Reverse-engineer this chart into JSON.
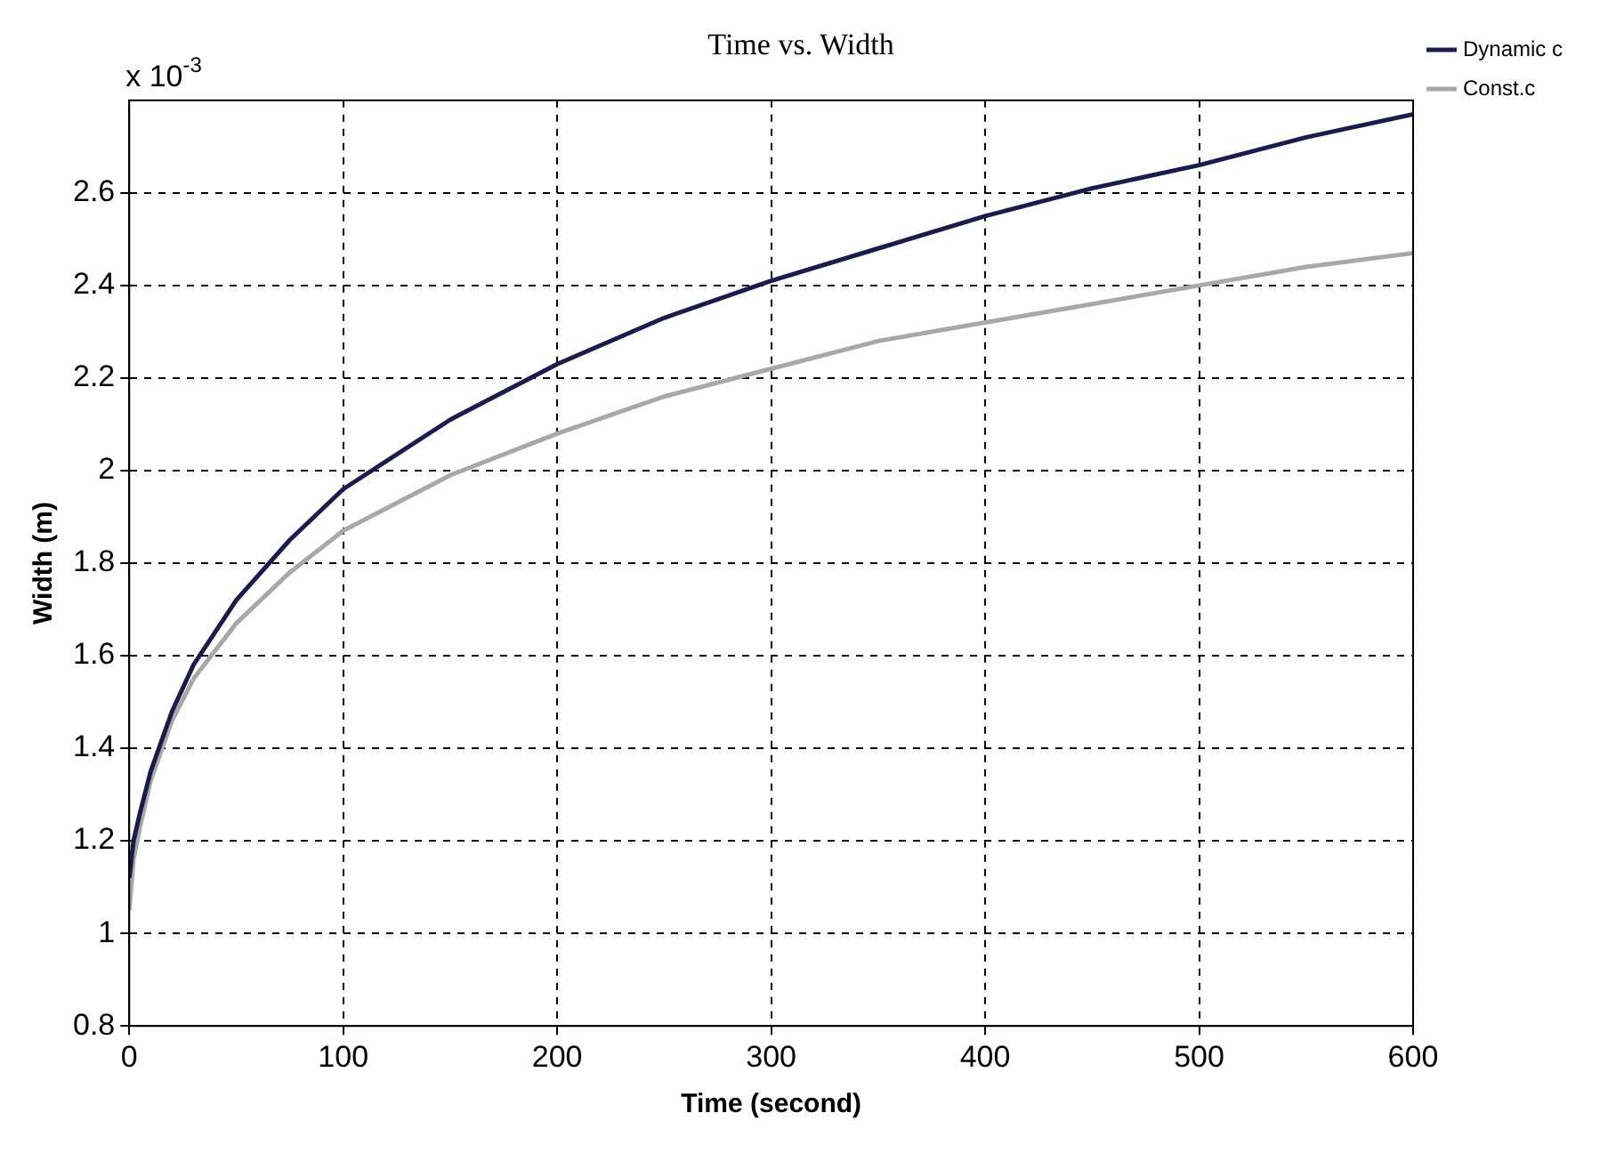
{
  "chart_data": {
    "type": "line",
    "title": "Time vs. Width",
    "xlabel": "Time (second)",
    "ylabel": "Width (m)",
    "annotations": [
      "x 10$^{-3}$"
    ],
    "xlim": [
      0,
      600
    ],
    "xticks": [
      0,
      100,
      200,
      300,
      400,
      500,
      600
    ],
    "ylim": [
      0.8,
      2.8
    ],
    "yticks": [
      0.8,
      1,
      1.2,
      1.4,
      1.6,
      1.8,
      2,
      2.2,
      2.4,
      2.6
    ],
    "grid": true,
    "legend": "top right",
    "marker": "none",
    "line_style": "solid",
    "series": [
      {
        "name": "Dynamic c",
        "color": "#1c1c4c",
        "x": [
          0,
          2,
          5,
          10,
          20,
          30,
          50,
          75,
          100,
          150,
          200,
          250,
          300,
          350,
          400,
          450,
          500,
          550,
          600
        ],
        "values": [
          1.12,
          1.2,
          1.26,
          1.35,
          1.48,
          1.58,
          1.72,
          1.85,
          1.96,
          2.11,
          2.23,
          2.33,
          2.41,
          2.48,
          2.55,
          2.61,
          2.66,
          2.72,
          2.77
        ]
      },
      {
        "name": "Const.c",
        "color": "#a8a8a8",
        "x": [
          0,
          2,
          5,
          10,
          20,
          30,
          50,
          75,
          100,
          150,
          200,
          250,
          300,
          350,
          400,
          450,
          500,
          550,
          600
        ],
        "values": [
          1.05,
          1.16,
          1.23,
          1.33,
          1.46,
          1.55,
          1.67,
          1.78,
          1.87,
          1.99,
          2.08,
          2.16,
          2.22,
          2.28,
          2.32,
          2.36,
          2.4,
          2.44,
          2.47
        ]
      }
    ]
  }
}
